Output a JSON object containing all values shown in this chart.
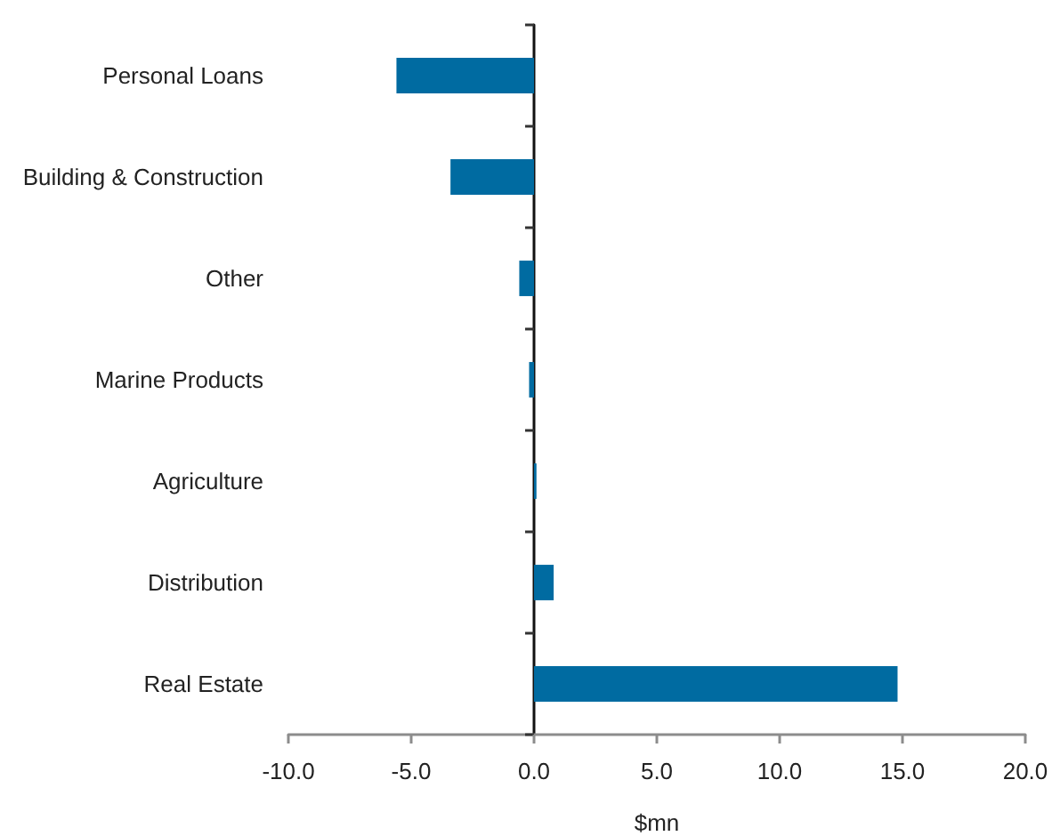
{
  "chart_data": {
    "type": "bar",
    "orientation": "horizontal",
    "categories": [
      "Personal Loans",
      "Building & Construction",
      "Other",
      "Marine Products",
      "Agriculture",
      "Distribution",
      "Real Estate"
    ],
    "values": [
      -5.6,
      -3.4,
      -0.6,
      -0.2,
      0.1,
      0.8,
      14.8
    ],
    "color": "#006ba1",
    "xlabel": "$mn",
    "xlim": [
      -10,
      20
    ],
    "xticks": [
      {
        "value": -10,
        "label": "-10.0"
      },
      {
        "value": -5,
        "label": "-5.0"
      },
      {
        "value": 0,
        "label": "0.0"
      },
      {
        "value": 5,
        "label": "5.0"
      },
      {
        "value": 10,
        "label": "10.0"
      },
      {
        "value": 15,
        "label": "15.0"
      },
      {
        "value": 20,
        "label": "20.0"
      }
    ]
  }
}
